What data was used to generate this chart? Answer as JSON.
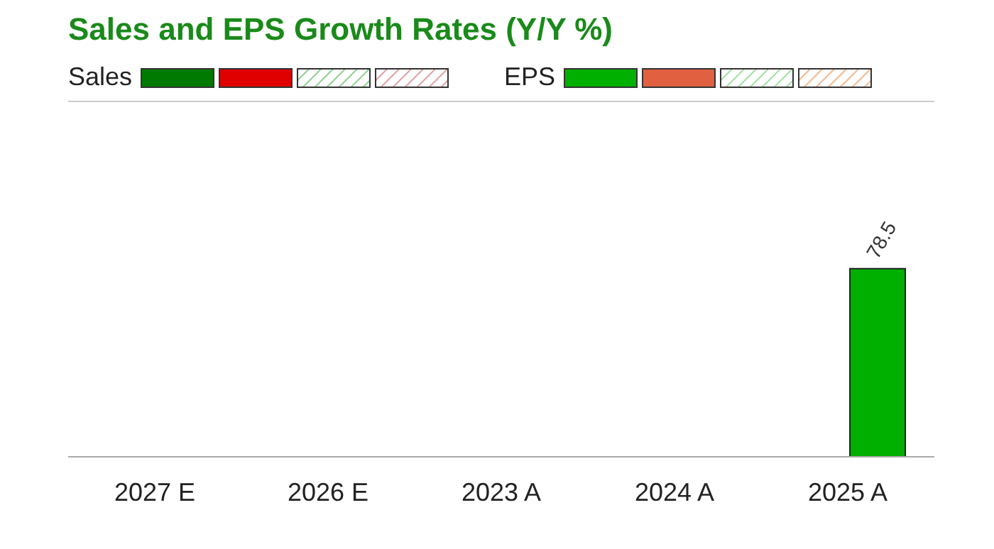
{
  "chart_data": {
    "type": "bar",
    "title": "Sales and EPS Growth Rates (Y/Y %)",
    "categories": [
      "2027  E",
      "2026  E",
      "2023  A",
      "2024  A",
      "2025  A"
    ],
    "series": [
      {
        "name": "Sales",
        "color": "#007a00",
        "values": [
          null,
          null,
          null,
          null,
          null
        ]
      },
      {
        "name": "EPS",
        "color": "#00b000",
        "values": [
          null,
          null,
          null,
          null,
          78.5
        ]
      }
    ],
    "data_labels": true,
    "legend": "top left",
    "grid": false
  }
}
